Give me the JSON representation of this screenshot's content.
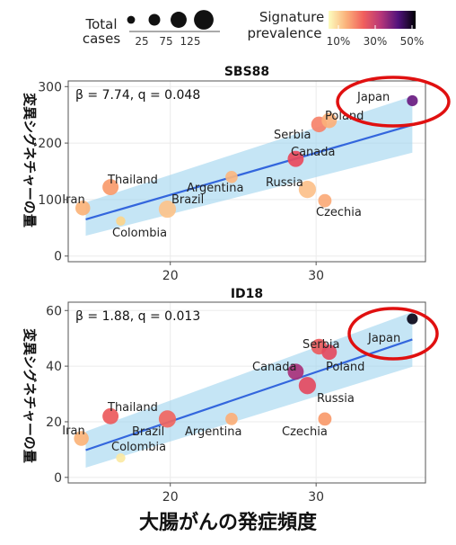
{
  "legend": {
    "size_title_1": "Total",
    "size_title_2": "cases",
    "size_labels": [
      "25",
      "75",
      "125"
    ],
    "size_values": [
      25,
      75,
      125
    ],
    "color_title_1": "Signature",
    "color_title_2": "prevalence",
    "color_labels": [
      "10%",
      "30%",
      "50%"
    ]
  },
  "y_axis_title": "変異シグネチャーの量",
  "x_axis_title": "大腸がんの発症頻度",
  "chart_data": [
    {
      "type": "scatter",
      "title": "SBS88",
      "annotation": "β = 7.74, q = 0.048",
      "xlim": [
        13,
        37.5
      ],
      "ylim": [
        -10,
        310
      ],
      "x_ticks": [
        "20",
        "30"
      ],
      "y_ticks": [
        "0",
        "100",
        "200",
        "300"
      ],
      "trend": {
        "x": [
          14.2,
          36.6
        ],
        "y": [
          65,
          232
        ],
        "band_lo": [
          36,
          183
        ],
        "band_hi": [
          95,
          283
        ]
      },
      "points": [
        {
          "label": "Iran",
          "x": 14.0,
          "y": 85,
          "cases": 60,
          "prevalence": 0.13,
          "color": "#fbb378"
        },
        {
          "label": "Thailand",
          "x": 15.9,
          "y": 122,
          "cases": 75,
          "prevalence": 0.16,
          "color": "#f99a6b"
        },
        {
          "label": "Colombia",
          "x": 16.6,
          "y": 62,
          "cases": 15,
          "prevalence": 0.08,
          "color": "#fcd58a"
        },
        {
          "label": "Brazil",
          "x": 19.8,
          "y": 83,
          "cases": 90,
          "prevalence": 0.11,
          "color": "#fcc38a"
        },
        {
          "label": "Argentina",
          "x": 24.2,
          "y": 140,
          "cases": 35,
          "prevalence": 0.12,
          "color": "#fbb780"
        },
        {
          "label": "Canada",
          "x": 28.6,
          "y": 172,
          "cases": 75,
          "prevalence": 0.24,
          "color": "#e94a5c"
        },
        {
          "label": "Russia",
          "x": 29.4,
          "y": 118,
          "cases": 90,
          "prevalence": 0.11,
          "color": "#fcc08a"
        },
        {
          "label": "Serbia",
          "x": 30.2,
          "y": 233,
          "cases": 70,
          "prevalence": 0.17,
          "color": "#f6826a"
        },
        {
          "label": "Czechia",
          "x": 30.6,
          "y": 98,
          "cases": 45,
          "prevalence": 0.13,
          "color": "#fbaa78"
        },
        {
          "label": "Poland",
          "x": 30.9,
          "y": 240,
          "cases": 65,
          "prevalence": 0.13,
          "color": "#fbb07a"
        },
        {
          "label": "Japan",
          "x": 36.6,
          "y": 275,
          "cases": 25,
          "prevalence": 0.4,
          "color": "#6a1c81"
        }
      ]
    },
    {
      "type": "scatter",
      "title": "ID18",
      "annotation": "β = 1.88, q = 0.013",
      "xlim": [
        13,
        37.5
      ],
      "ylim": [
        -2,
        63
      ],
      "x_ticks": [
        "20",
        "30"
      ],
      "y_ticks": [
        "0",
        "20",
        "40",
        "60"
      ],
      "trend": {
        "x": [
          14.2,
          36.6
        ],
        "y": [
          9.8,
          49.6
        ],
        "band_lo": [
          3.5,
          39.8
        ],
        "band_hi": [
          16.5,
          59.5
        ]
      },
      "points": [
        {
          "label": "Iran",
          "x": 13.9,
          "y": 14,
          "cases": 60,
          "prevalence": 0.13,
          "color": "#fbb378"
        },
        {
          "label": "Thailand",
          "x": 15.9,
          "y": 22,
          "cases": 75,
          "prevalence": 0.21,
          "color": "#ec5a5c"
        },
        {
          "label": "Colombia",
          "x": 16.6,
          "y": 7,
          "cases": 15,
          "prevalence": 0.06,
          "color": "#fbe9a3"
        },
        {
          "label": "Brazil",
          "x": 19.8,
          "y": 21,
          "cases": 90,
          "prevalence": 0.19,
          "color": "#f06660"
        },
        {
          "label": "Argentina",
          "x": 24.2,
          "y": 21,
          "cases": 35,
          "prevalence": 0.13,
          "color": "#fbaf78"
        },
        {
          "label": "Canada",
          "x": 28.6,
          "y": 38,
          "cases": 75,
          "prevalence": 0.32,
          "color": "#a8327a"
        },
        {
          "label": "Russia",
          "x": 29.4,
          "y": 33,
          "cases": 90,
          "prevalence": 0.25,
          "color": "#e34a5f"
        },
        {
          "label": "Serbia",
          "x": 30.2,
          "y": 47,
          "cases": 70,
          "prevalence": 0.21,
          "color": "#ec5b5d"
        },
        {
          "label": "Czechia",
          "x": 30.6,
          "y": 21,
          "cases": 45,
          "prevalence": 0.15,
          "color": "#f99a6b"
        },
        {
          "label": "Poland",
          "x": 30.9,
          "y": 45,
          "cases": 65,
          "prevalence": 0.24,
          "color": "#e34b5f"
        },
        {
          "label": "Japan",
          "x": 36.6,
          "y": 57,
          "cases": 25,
          "prevalence": 0.5,
          "color": "#090618"
        }
      ]
    }
  ]
}
